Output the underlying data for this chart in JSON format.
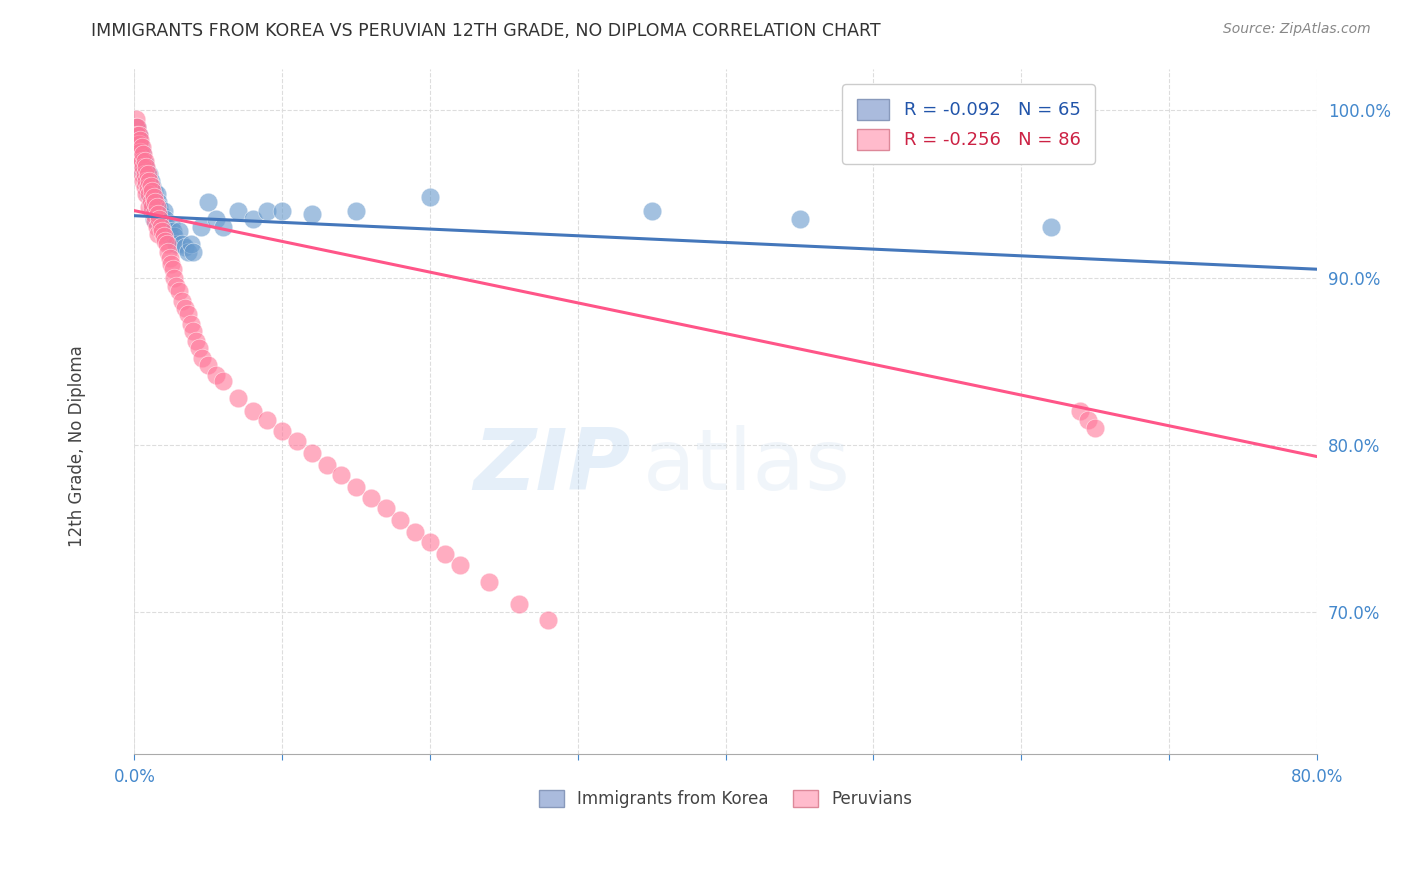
{
  "title": "IMMIGRANTS FROM KOREA VS PERUVIAN 12TH GRADE, NO DIPLOMA CORRELATION CHART",
  "source": "Source: ZipAtlas.com",
  "ylabel": "12th Grade, No Diploma",
  "legend_korea": "R = -0.092   N = 65",
  "legend_peru": "R = -0.256   N = 86",
  "legend_label_korea": "Immigrants from Korea",
  "legend_label_peru": "Peruvians",
  "watermark_zip": "ZIP",
  "watermark_atlas": "atlas",
  "color_korea": "#6699CC",
  "color_peru": "#FF7799",
  "color_korea_line": "#4477BB",
  "color_peru_line": "#FF5588",
  "background": "#FFFFFF",
  "xlim": [
    0.0,
    0.8
  ],
  "ylim": [
    0.615,
    1.025
  ],
  "korea_line_x": [
    0.0,
    0.8
  ],
  "korea_line_y": [
    0.937,
    0.905
  ],
  "peru_line_x": [
    0.0,
    0.8
  ],
  "peru_line_y": [
    0.94,
    0.793
  ],
  "korea_scatter_x": [
    0.001,
    0.001,
    0.002,
    0.002,
    0.003,
    0.003,
    0.003,
    0.004,
    0.004,
    0.004,
    0.005,
    0.005,
    0.005,
    0.006,
    0.006,
    0.007,
    0.007,
    0.008,
    0.008,
    0.009,
    0.009,
    0.01,
    0.01,
    0.011,
    0.011,
    0.012,
    0.012,
    0.013,
    0.013,
    0.014,
    0.015,
    0.015,
    0.016,
    0.017,
    0.018,
    0.019,
    0.02,
    0.021,
    0.022,
    0.023,
    0.024,
    0.025,
    0.026,
    0.027,
    0.028,
    0.03,
    0.032,
    0.034,
    0.036,
    0.038,
    0.04,
    0.045,
    0.05,
    0.055,
    0.06,
    0.07,
    0.08,
    0.09,
    0.1,
    0.12,
    0.15,
    0.2,
    0.35,
    0.45,
    0.62
  ],
  "korea_scatter_y": [
    0.99,
    0.985,
    0.99,
    0.985,
    0.985,
    0.98,
    0.975,
    0.98,
    0.975,
    0.97,
    0.975,
    0.97,
    0.965,
    0.97,
    0.965,
    0.968,
    0.96,
    0.965,
    0.958,
    0.96,
    0.95,
    0.962,
    0.952,
    0.958,
    0.945,
    0.955,
    0.94,
    0.952,
    0.935,
    0.948,
    0.95,
    0.938,
    0.945,
    0.942,
    0.938,
    0.935,
    0.94,
    0.935,
    0.93,
    0.928,
    0.925,
    0.932,
    0.928,
    0.925,
    0.92,
    0.928,
    0.92,
    0.918,
    0.915,
    0.92,
    0.915,
    0.93,
    0.945,
    0.935,
    0.93,
    0.94,
    0.935,
    0.94,
    0.94,
    0.938,
    0.94,
    0.948,
    0.94,
    0.935,
    0.93
  ],
  "peru_scatter_x": [
    0.001,
    0.001,
    0.002,
    0.002,
    0.002,
    0.003,
    0.003,
    0.003,
    0.004,
    0.004,
    0.004,
    0.005,
    0.005,
    0.005,
    0.006,
    0.006,
    0.006,
    0.007,
    0.007,
    0.007,
    0.008,
    0.008,
    0.008,
    0.009,
    0.009,
    0.01,
    0.01,
    0.01,
    0.011,
    0.011,
    0.012,
    0.012,
    0.013,
    0.013,
    0.014,
    0.014,
    0.015,
    0.015,
    0.016,
    0.016,
    0.017,
    0.018,
    0.019,
    0.02,
    0.021,
    0.022,
    0.023,
    0.024,
    0.025,
    0.026,
    0.027,
    0.028,
    0.03,
    0.032,
    0.034,
    0.036,
    0.038,
    0.04,
    0.042,
    0.044,
    0.046,
    0.05,
    0.055,
    0.06,
    0.07,
    0.08,
    0.09,
    0.1,
    0.11,
    0.12,
    0.13,
    0.14,
    0.15,
    0.16,
    0.17,
    0.18,
    0.19,
    0.2,
    0.21,
    0.22,
    0.24,
    0.26,
    0.28,
    0.64,
    0.645,
    0.65
  ],
  "peru_scatter_y": [
    0.995,
    0.99,
    0.99,
    0.985,
    0.98,
    0.985,
    0.98,
    0.972,
    0.982,
    0.975,
    0.968,
    0.978,
    0.97,
    0.962,
    0.974,
    0.966,
    0.958,
    0.97,
    0.962,
    0.954,
    0.966,
    0.958,
    0.95,
    0.962,
    0.954,
    0.958,
    0.95,
    0.942,
    0.955,
    0.945,
    0.952,
    0.942,
    0.948,
    0.938,
    0.945,
    0.934,
    0.942,
    0.93,
    0.938,
    0.926,
    0.935,
    0.93,
    0.928,
    0.925,
    0.922,
    0.92,
    0.915,
    0.912,
    0.908,
    0.905,
    0.9,
    0.895,
    0.892,
    0.886,
    0.882,
    0.878,
    0.872,
    0.868,
    0.862,
    0.858,
    0.852,
    0.848,
    0.842,
    0.838,
    0.828,
    0.82,
    0.815,
    0.808,
    0.802,
    0.795,
    0.788,
    0.782,
    0.775,
    0.768,
    0.762,
    0.755,
    0.748,
    0.742,
    0.735,
    0.728,
    0.718,
    0.705,
    0.695,
    0.82,
    0.815,
    0.81
  ]
}
